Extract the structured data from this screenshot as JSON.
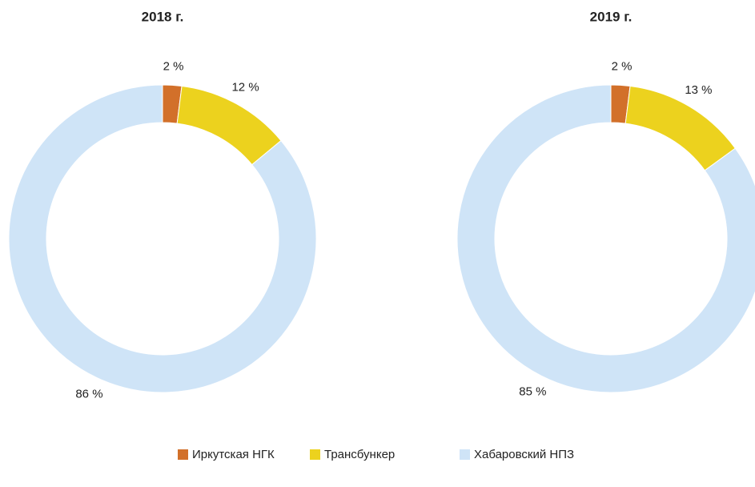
{
  "chart_data": [
    {
      "type": "pie",
      "title": "2018 г.",
      "categories": [
        "Иркутская НГК",
        "Трансбункер",
        "Хабаровский НПЗ"
      ],
      "values": [
        2,
        12,
        86
      ],
      "value_labels": [
        "2 %",
        "12 %",
        "86 %"
      ],
      "colors": [
        "#d2702a",
        "#ecd21e",
        "#cfe4f7"
      ],
      "legend": "bottom"
    },
    {
      "type": "pie",
      "title": "2019 г.",
      "categories": [
        "Иркутская НГК",
        "Трансбункер",
        "Хабаровский НПЗ"
      ],
      "values": [
        2,
        13,
        85
      ],
      "value_labels": [
        "2 %",
        "13 %",
        "85 %"
      ],
      "colors": [
        "#d2702a",
        "#ecd21e",
        "#cfe4f7"
      ],
      "legend": "bottom"
    }
  ]
}
